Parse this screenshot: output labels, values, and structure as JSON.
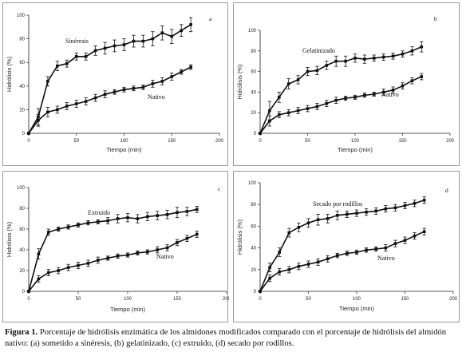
{
  "caption": {
    "label": "Figura 1.",
    "text": "Porcentaje de hidrólisis enzimática de los almidones modificados comparado con el porcentaje de hidrólisis del almidón nativo: (a) sometido a sinéresis, (b) gelatinizado, (c) extruido, (d) secado por rodillos."
  },
  "chart_data": [
    {
      "type": "line",
      "panel_label": "a",
      "xlabel": "Tiempo (min)",
      "ylabel": "Hidrólisis (%)",
      "xlim": [
        0,
        200
      ],
      "ylim": [
        0,
        100
      ],
      "xticks": [
        0,
        50,
        100,
        150,
        200
      ],
      "yticks": [
        0,
        20,
        40,
        60,
        80,
        100
      ],
      "grid": false,
      "series": [
        {
          "name": "Sinéresis",
          "x": [
            0,
            10,
            20,
            30,
            40,
            50,
            60,
            70,
            80,
            90,
            100,
            110,
            120,
            130,
            140,
            150,
            160,
            170
          ],
          "y": [
            0,
            14,
            44,
            57,
            59,
            65,
            65,
            70,
            72,
            74,
            75,
            78,
            78,
            80,
            85,
            82,
            87,
            92
          ],
          "err": [
            0,
            7,
            4,
            4,
            3,
            3,
            3,
            4,
            5,
            5,
            5,
            5,
            5,
            6,
            6,
            6,
            5,
            6
          ]
        },
        {
          "name": "Nativo",
          "x": [
            0,
            10,
            20,
            30,
            40,
            50,
            60,
            70,
            80,
            90,
            100,
            110,
            120,
            130,
            140,
            150,
            160,
            170
          ],
          "y": [
            0,
            11,
            18,
            20,
            23,
            25,
            27,
            30,
            33,
            35,
            37,
            38,
            39,
            42,
            44,
            48,
            52,
            56
          ],
          "err": [
            0,
            5,
            4,
            3,
            3,
            3,
            3,
            3,
            3,
            2,
            2,
            2,
            2,
            3,
            3,
            3,
            2,
            2
          ]
        }
      ]
    },
    {
      "type": "line",
      "panel_label": "b",
      "xlabel": "Tiempo (min)",
      "ylabel": "Hidrólisis (%)",
      "xlim": [
        0,
        200
      ],
      "ylim": [
        0,
        100
      ],
      "xticks": [
        0,
        50,
        100,
        150,
        200
      ],
      "yticks": [
        0,
        20,
        40,
        60,
        80,
        100
      ],
      "grid": false,
      "series": [
        {
          "name": "Gelatinizado",
          "x": [
            0,
            10,
            20,
            30,
            40,
            50,
            60,
            70,
            80,
            90,
            100,
            110,
            120,
            130,
            140,
            150,
            160,
            170
          ],
          "y": [
            0,
            22,
            35,
            48,
            52,
            60,
            61,
            66,
            70,
            70,
            73,
            72,
            73,
            74,
            75,
            77,
            80,
            84
          ],
          "err": [
            0,
            9,
            5,
            5,
            4,
            4,
            4,
            4,
            5,
            5,
            4,
            4,
            3,
            3,
            3,
            3,
            4,
            5
          ]
        },
        {
          "name": "Nativo",
          "x": [
            0,
            10,
            20,
            30,
            40,
            50,
            60,
            70,
            80,
            90,
            100,
            110,
            120,
            130,
            140,
            150,
            160,
            170
          ],
          "y": [
            0,
            12,
            18,
            20,
            22,
            24,
            26,
            29,
            32,
            34,
            35,
            37,
            38,
            40,
            42,
            46,
            51,
            55
          ],
          "err": [
            0,
            5,
            3,
            3,
            3,
            3,
            3,
            3,
            3,
            2,
            2,
            2,
            2,
            3,
            3,
            3,
            3,
            3
          ]
        }
      ]
    },
    {
      "type": "line",
      "panel_label": "c",
      "xlabel": "Tiempo (min)",
      "ylabel": "Hidrólisis (%)",
      "xlim": [
        0,
        200
      ],
      "ylim": [
        0,
        100
      ],
      "xticks": [
        0,
        50,
        100,
        150,
        200
      ],
      "yticks": [
        0,
        20,
        40,
        60,
        80,
        100
      ],
      "grid": false,
      "series": [
        {
          "name": "Extruido",
          "x": [
            0,
            10,
            20,
            30,
            40,
            50,
            60,
            70,
            80,
            90,
            100,
            110,
            120,
            130,
            140,
            150,
            160,
            170
          ],
          "y": [
            0,
            36,
            57,
            60,
            62,
            64,
            66,
            67,
            68,
            70,
            71,
            70,
            72,
            73,
            74,
            76,
            77,
            79
          ],
          "err": [
            0,
            5,
            3,
            2,
            2,
            2,
            2,
            2,
            3,
            4,
            4,
            4,
            4,
            4,
            4,
            5,
            4,
            3
          ]
        },
        {
          "name": "Nativo",
          "x": [
            0,
            10,
            20,
            30,
            40,
            50,
            60,
            70,
            80,
            90,
            100,
            110,
            120,
            130,
            140,
            150,
            160,
            170
          ],
          "y": [
            0,
            12,
            18,
            20,
            23,
            25,
            27,
            30,
            32,
            34,
            35,
            37,
            38,
            40,
            42,
            47,
            51,
            55
          ],
          "err": [
            0,
            3,
            3,
            3,
            3,
            3,
            3,
            3,
            2,
            2,
            2,
            2,
            2,
            3,
            3,
            3,
            3,
            3
          ]
        }
      ]
    },
    {
      "type": "line",
      "panel_label": "d",
      "xlabel": "Tiempo (min)",
      "ylabel": "Hidrólisis (%)",
      "xlim": [
        0,
        200
      ],
      "ylim": [
        0,
        100
      ],
      "xticks": [
        0,
        50,
        100,
        150,
        200
      ],
      "yticks": [
        0,
        20,
        40,
        60,
        80,
        100
      ],
      "grid": false,
      "series": [
        {
          "name": "Secado por rodillos",
          "x": [
            0,
            10,
            20,
            30,
            40,
            50,
            60,
            70,
            80,
            90,
            100,
            110,
            120,
            130,
            140,
            150,
            160,
            170
          ],
          "y": [
            0,
            22,
            36,
            54,
            59,
            63,
            66,
            67,
            70,
            71,
            72,
            73,
            74,
            76,
            77,
            79,
            81,
            84
          ],
          "err": [
            0,
            4,
            4,
            4,
            4,
            4,
            5,
            4,
            4,
            3,
            3,
            3,
            3,
            3,
            3,
            3,
            3,
            3
          ]
        },
        {
          "name": "Nativo",
          "x": [
            0,
            10,
            20,
            30,
            40,
            50,
            60,
            70,
            80,
            90,
            100,
            110,
            120,
            130,
            140,
            150,
            160,
            170
          ],
          "y": [
            0,
            12,
            18,
            20,
            23,
            25,
            27,
            30,
            33,
            35,
            36,
            38,
            39,
            40,
            44,
            47,
            51,
            55
          ],
          "err": [
            0,
            3,
            3,
            3,
            3,
            3,
            3,
            3,
            2,
            2,
            2,
            2,
            2,
            3,
            3,
            3,
            3,
            3
          ]
        }
      ]
    }
  ]
}
